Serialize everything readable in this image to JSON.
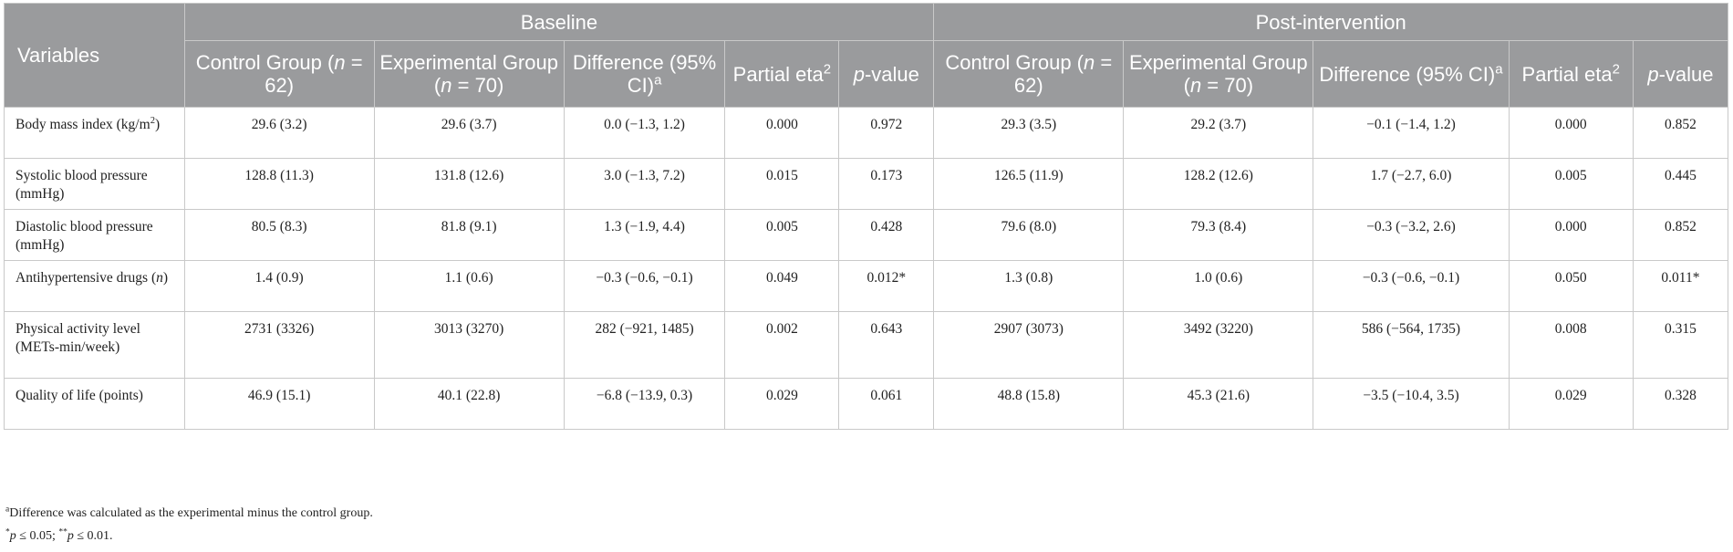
{
  "header": {
    "group_baseline": "Baseline",
    "group_post": "Post-intervention",
    "variables": "Variables",
    "columns": [
      {
        "text": "Control Group (",
        "italic": "n",
        "after": " = 62)"
      },
      {
        "text": "Experimental Group (",
        "italic": "n",
        "after": " = 70)"
      },
      {
        "text": "Difference (95% CI)",
        "sup": "a"
      },
      {
        "text": "Partial eta",
        "sup": "2"
      },
      {
        "italic": "p",
        "after": "-value"
      },
      {
        "text": "Control Group (",
        "italic": "n",
        "after": " = 62)"
      },
      {
        "text": "Experimental Group (",
        "italic": "n",
        "after": " = 70)"
      },
      {
        "text": "Difference (95% CI)",
        "sup": "a"
      },
      {
        "text": "Partial eta",
        "sup": "2"
      },
      {
        "italic": "p",
        "after": "-value"
      }
    ]
  },
  "rows": [
    {
      "name": "bmi",
      "label": "Body mass index (kg/m",
      "label_sup": "2",
      "label_after": ")",
      "cells": [
        "29.6 (3.2)",
        "29.6 (3.7)",
        "0.0 (−1.3, 1.2)",
        "0.000",
        "0.972",
        "29.3 (3.5)",
        "29.2 (3.7)",
        "−0.1 (−1.4, 1.2)",
        "0.000",
        "0.852"
      ]
    },
    {
      "name": "systolic",
      "label": "Systolic blood pressure (mmHg)",
      "cells": [
        "128.8 (11.3)",
        "131.8 (12.6)",
        "3.0 (−1.3, 7.2)",
        "0.015",
        "0.173",
        "126.5 (11.9)",
        "128.2 (12.6)",
        "1.7 (−2.7, 6.0)",
        "0.005",
        "0.445"
      ]
    },
    {
      "name": "diastolic",
      "label": "Diastolic blood pressure (mmHg)",
      "cells": [
        "80.5 (8.3)",
        "81.8 (9.1)",
        "1.3 (−1.9, 4.4)",
        "0.005",
        "0.428",
        "79.6 (8.0)",
        "79.3 (8.4)",
        "−0.3 (−3.2, 2.6)",
        "0.000",
        "0.852"
      ]
    },
    {
      "name": "antihypertensive",
      "label": "Antihypertensive drugs (",
      "label_italic": "n",
      "label_after": ")",
      "cells": [
        "1.4 (0.9)",
        "1.1 (0.6)",
        "−0.3 (−0.6, −0.1)",
        "0.049",
        "0.012*",
        "1.3 (0.8)",
        "1.0 (0.6)",
        "−0.3 (−0.6, −0.1)",
        "0.050",
        "0.011*"
      ]
    },
    {
      "name": "physical-activity",
      "label": "Physical activity level (METs-min/week)",
      "tall": true,
      "cells": [
        "2731 (3326)",
        "3013 (3270)",
        "282 (−921, 1485)",
        "0.002",
        "0.643",
        "2907 (3073)",
        "3492 (3220)",
        "586 (−564, 1735)",
        "0.008",
        "0.315"
      ]
    },
    {
      "name": "quality-of-life",
      "label": "Quality of life (points)",
      "cells": [
        "46.9 (15.1)",
        "40.1 (22.8)",
        "−6.8 (−13.9, 0.3)",
        "0.029",
        "0.061",
        "48.8 (15.8)",
        "45.3 (21.6)",
        "−3.5 (−10.4, 3.5)",
        "0.029",
        "0.328"
      ]
    }
  ],
  "footnotes": {
    "a_mark": "a",
    "a_text": "Difference was calculated as the experimental minus the control group.",
    "sig_star1": "*",
    "sig_p1": "p",
    "sig_text1": " ≤ 0.05; ",
    "sig_star2": "**",
    "sig_p2": "p",
    "sig_text2": " ≤ 0.01."
  }
}
